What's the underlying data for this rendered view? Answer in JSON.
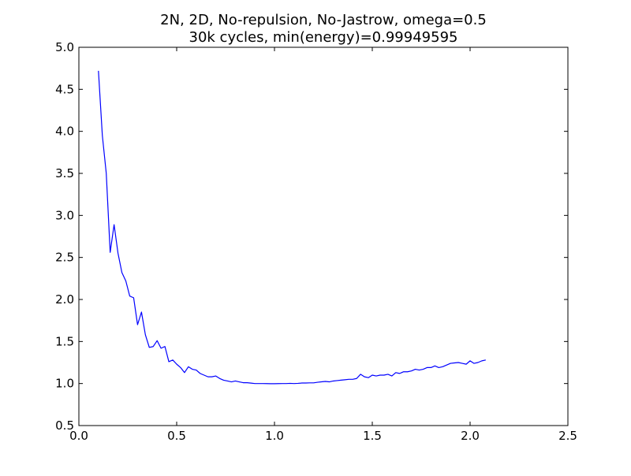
{
  "chart_data": {
    "type": "line",
    "title": "2N, 2D, No-repulsion, No-Jastrow, omega=0.5",
    "subtitle": "30k cycles, min(energy)=0.99949595",
    "xlabel": "",
    "ylabel": "",
    "xlim": [
      0.0,
      2.5
    ],
    "ylim": [
      0.5,
      5.0
    ],
    "xticks": [
      "0.0",
      "0.5",
      "1.0",
      "1.5",
      "2.0",
      "2.5"
    ],
    "yticks": [
      "0.5",
      "1.0",
      "1.5",
      "2.0",
      "2.5",
      "3.0",
      "3.5",
      "4.0",
      "4.5",
      "5.0"
    ],
    "grid": false,
    "legend": "none",
    "series": [
      {
        "color": "#0000ff",
        "points": [
          [
            0.1,
            4.72
          ],
          [
            0.12,
            3.95
          ],
          [
            0.14,
            3.5
          ],
          [
            0.16,
            2.56
          ],
          [
            0.18,
            2.89
          ],
          [
            0.2,
            2.55
          ],
          [
            0.22,
            2.32
          ],
          [
            0.24,
            2.22
          ],
          [
            0.26,
            2.04
          ],
          [
            0.28,
            2.02
          ],
          [
            0.3,
            1.7
          ],
          [
            0.32,
            1.85
          ],
          [
            0.34,
            1.58
          ],
          [
            0.36,
            1.43
          ],
          [
            0.38,
            1.44
          ],
          [
            0.4,
            1.51
          ],
          [
            0.42,
            1.42
          ],
          [
            0.44,
            1.44
          ],
          [
            0.46,
            1.26
          ],
          [
            0.48,
            1.28
          ],
          [
            0.5,
            1.23
          ],
          [
            0.52,
            1.19
          ],
          [
            0.54,
            1.13
          ],
          [
            0.56,
            1.2
          ],
          [
            0.58,
            1.17
          ],
          [
            0.6,
            1.16
          ],
          [
            0.62,
            1.12
          ],
          [
            0.64,
            1.1
          ],
          [
            0.66,
            1.08
          ],
          [
            0.68,
            1.08
          ],
          [
            0.7,
            1.09
          ],
          [
            0.72,
            1.06
          ],
          [
            0.74,
            1.04
          ],
          [
            0.76,
            1.03
          ],
          [
            0.78,
            1.02
          ],
          [
            0.8,
            1.03
          ],
          [
            0.82,
            1.02
          ],
          [
            0.84,
            1.01
          ],
          [
            0.86,
            1.01
          ],
          [
            0.88,
            1.005
          ],
          [
            0.9,
            1.0
          ],
          [
            0.92,
            1.0
          ],
          [
            0.94,
            1.0
          ],
          [
            0.96,
            0.999
          ],
          [
            0.98,
            0.998
          ],
          [
            1.0,
            0.998
          ],
          [
            1.02,
            0.999
          ],
          [
            1.04,
            1.0
          ],
          [
            1.06,
            1.0
          ],
          [
            1.08,
            1.002
          ],
          [
            1.1,
            1.0
          ],
          [
            1.12,
            1.002
          ],
          [
            1.14,
            1.006
          ],
          [
            1.16,
            1.006
          ],
          [
            1.18,
            1.008
          ],
          [
            1.2,
            1.008
          ],
          [
            1.22,
            1.015
          ],
          [
            1.24,
            1.02
          ],
          [
            1.26,
            1.025
          ],
          [
            1.28,
            1.02
          ],
          [
            1.3,
            1.03
          ],
          [
            1.32,
            1.035
          ],
          [
            1.34,
            1.04
          ],
          [
            1.36,
            1.045
          ],
          [
            1.38,
            1.05
          ],
          [
            1.4,
            1.05
          ],
          [
            1.42,
            1.06
          ],
          [
            1.44,
            1.11
          ],
          [
            1.46,
            1.08
          ],
          [
            1.48,
            1.07
          ],
          [
            1.5,
            1.1
          ],
          [
            1.52,
            1.09
          ],
          [
            1.54,
            1.1
          ],
          [
            1.56,
            1.1
          ],
          [
            1.58,
            1.11
          ],
          [
            1.6,
            1.09
          ],
          [
            1.62,
            1.13
          ],
          [
            1.64,
            1.12
          ],
          [
            1.66,
            1.14
          ],
          [
            1.68,
            1.14
          ],
          [
            1.7,
            1.15
          ],
          [
            1.72,
            1.17
          ],
          [
            1.74,
            1.16
          ],
          [
            1.76,
            1.17
          ],
          [
            1.78,
            1.19
          ],
          [
            1.8,
            1.19
          ],
          [
            1.82,
            1.21
          ],
          [
            1.84,
            1.19
          ],
          [
            1.86,
            1.2
          ],
          [
            1.88,
            1.22
          ],
          [
            1.9,
            1.24
          ],
          [
            1.92,
            1.245
          ],
          [
            1.94,
            1.25
          ],
          [
            1.96,
            1.24
          ],
          [
            1.98,
            1.23
          ],
          [
            2.0,
            1.27
          ],
          [
            2.02,
            1.24
          ],
          [
            2.04,
            1.25
          ],
          [
            2.06,
            1.27
          ],
          [
            2.08,
            1.28
          ]
        ]
      }
    ]
  }
}
